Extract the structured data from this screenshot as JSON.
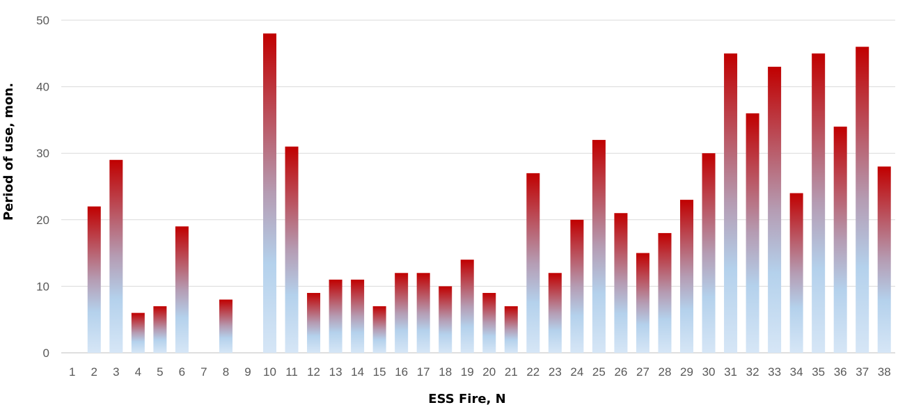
{
  "chart_data": {
    "type": "bar",
    "title": "",
    "xlabel": "ESS Fire, N",
    "ylabel": "Period of use, mon.",
    "ylim": [
      0,
      50
    ],
    "yticks": [
      0,
      10,
      20,
      30,
      40,
      50
    ],
    "grid": "horizontal",
    "legend": "none",
    "categories": [
      "1",
      "2",
      "3",
      "4",
      "5",
      "6",
      "7",
      "8",
      "9",
      "10",
      "11",
      "12",
      "13",
      "14",
      "15",
      "16",
      "17",
      "18",
      "19",
      "20",
      "21",
      "22",
      "23",
      "24",
      "25",
      "26",
      "27",
      "28",
      "29",
      "30",
      "31",
      "32",
      "33",
      "34",
      "35",
      "36",
      "37",
      "38"
    ],
    "values": [
      0,
      22,
      29,
      6,
      7,
      19,
      0,
      8,
      0,
      48,
      31,
      9,
      11,
      11,
      7,
      12,
      12,
      10,
      14,
      9,
      7,
      27,
      12,
      20,
      32,
      21,
      15,
      18,
      23,
      30,
      45,
      36,
      43,
      24,
      45,
      34,
      46,
      28
    ],
    "colors": {
      "bar_top": "#c00000",
      "bar_bottom": "#bdd7ee",
      "grid": "#d9d9d9",
      "tick_text": "#595959"
    }
  }
}
